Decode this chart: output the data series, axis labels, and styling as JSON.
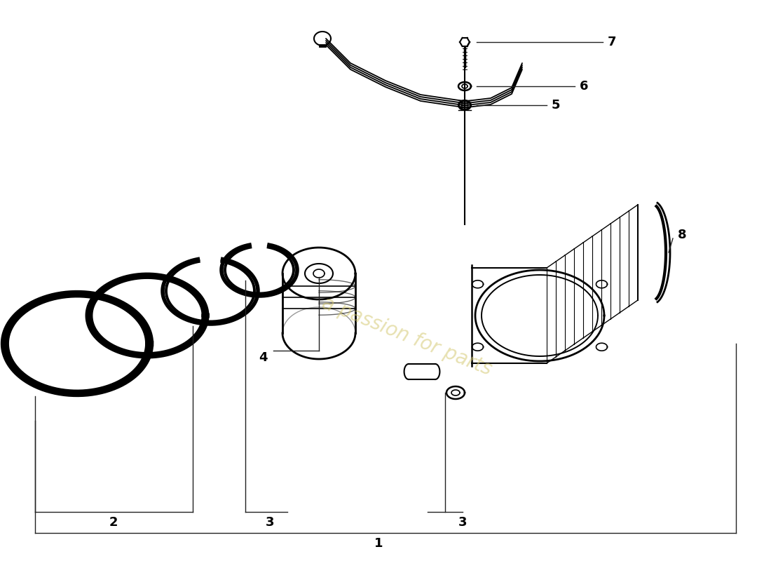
{
  "bg_color": "#ffffff",
  "line_color": "#000000",
  "watermark_color": "#d4c870"
}
